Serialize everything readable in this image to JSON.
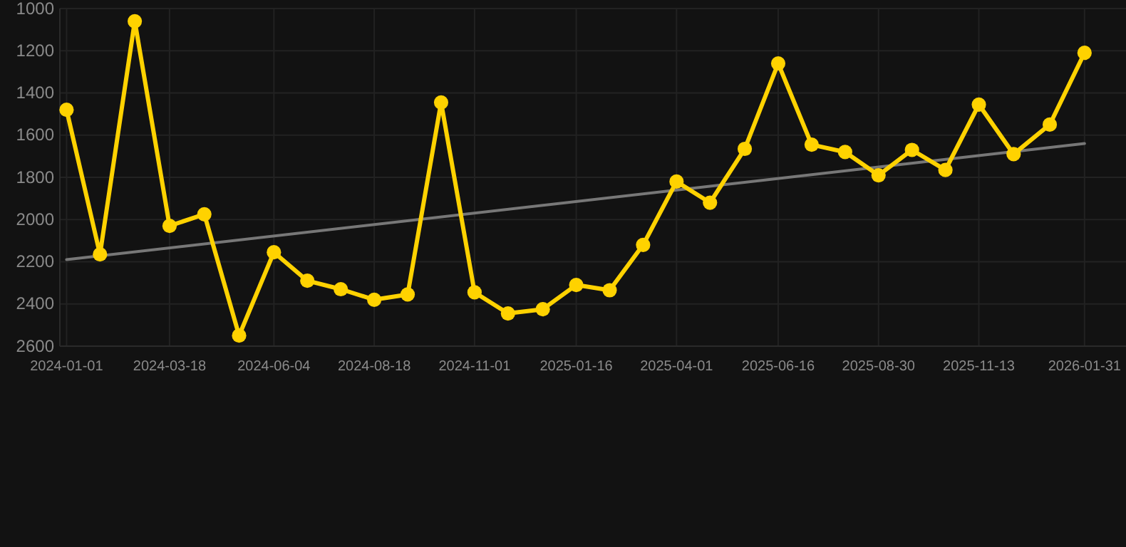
{
  "chart_data": {
    "type": "line",
    "x": [
      "2024-01-01",
      "2024-01-26",
      "2024-02-21",
      "2024-03-18",
      "2024-04-13",
      "2024-05-09",
      "2024-06-04",
      "2024-06-29",
      "2024-07-24",
      "2024-08-18",
      "2024-09-12",
      "2024-10-07",
      "2024-11-01",
      "2024-11-26",
      "2024-12-22",
      "2025-01-16",
      "2025-02-10",
      "2025-03-07",
      "2025-04-01",
      "2025-04-26",
      "2025-05-22",
      "2025-06-16",
      "2025-07-11",
      "2025-08-05",
      "2025-08-30",
      "2025-09-24",
      "2025-10-19",
      "2025-11-13",
      "2025-12-09",
      "2026-01-05",
      "2026-01-31"
    ],
    "series": [
      {
        "color": "#ffd200",
        "marker": "circle",
        "values": [
          1480,
          2165,
          1060,
          2030,
          1975,
          2550,
          2155,
          2290,
          2330,
          2380,
          2355,
          1445,
          2345,
          2445,
          2425,
          2310,
          2335,
          2120,
          1820,
          1920,
          1665,
          1260,
          1645,
          1680,
          1790,
          1670,
          1765,
          1455,
          1690,
          1550,
          1210
        ]
      },
      {
        "type": "line",
        "color": "#777777",
        "marker": "none",
        "x": [
          "2024-01-01",
          "2026-01-31"
        ],
        "values": [
          2190,
          1640
        ]
      }
    ],
    "xlim": [
      "2023-12-27",
      "2026-03-03"
    ],
    "xticks": [
      "2024-01-01",
      "2024-03-18",
      "2024-06-04",
      "2024-08-18",
      "2024-11-01",
      "2025-01-16",
      "2025-04-01",
      "2025-06-16",
      "2025-08-30",
      "2025-11-13",
      "2026-01-31"
    ],
    "ylim": [
      2600,
      1000
    ],
    "yticks": [
      1000,
      1200,
      1400,
      1600,
      1800,
      2000,
      2200,
      2400,
      2600
    ],
    "grid": true,
    "line_style": "solid"
  }
}
